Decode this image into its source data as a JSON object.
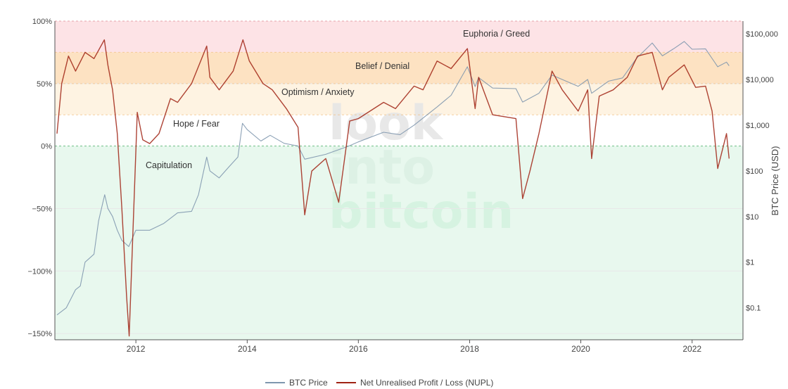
{
  "chart_data": {
    "type": "line",
    "x_ticks": [
      "2012",
      "2014",
      "2016",
      "2018",
      "2020",
      "2022"
    ],
    "y_left": {
      "range": [
        -1.55,
        1.0
      ],
      "ticks": [
        {
          "v": 1.0,
          "label": "100%"
        },
        {
          "v": 0.5,
          "label": "50%"
        },
        {
          "v": 0.0,
          "label": "0%"
        },
        {
          "v": -0.5,
          "label": "−50%"
        },
        {
          "v": -1.0,
          "label": "−100%"
        },
        {
          "v": -1.5,
          "label": "−150%"
        }
      ]
    },
    "y_right": {
      "title": "BTC Price (USD)",
      "scale": "log",
      "range": [
        0.02,
        190000
      ],
      "ticks": [
        {
          "v": 100000,
          "label": "$100,000"
        },
        {
          "v": 10000,
          "label": "$10,000"
        },
        {
          "v": 1000,
          "label": "$1,000"
        },
        {
          "v": 100,
          "label": "$100"
        },
        {
          "v": 10,
          "label": "$10"
        },
        {
          "v": 1,
          "label": "$1"
        },
        {
          "v": 0.1,
          "label": "$0.1"
        }
      ]
    },
    "zones": [
      {
        "label": "Euphoria / Greed",
        "from": 0.75,
        "to": 1.0,
        "color": "#fde3e6"
      },
      {
        "label": "Belief / Denial",
        "from": 0.5,
        "to": 0.75,
        "color": "#fde2c2"
      },
      {
        "label": "Optimism / Anxiety",
        "from": 0.25,
        "to": 0.5,
        "color": "#fef3e2"
      },
      {
        "label": "Hope / Fear",
        "from": 0.0,
        "to": 0.25,
        "color": "#ffffff"
      },
      {
        "label": "Capitulation",
        "from": -1.55,
        "to": 0.0,
        "color": "#e8f8ee"
      }
    ],
    "watermark": [
      "look",
      "into",
      "bitcoin"
    ],
    "series": [
      {
        "name": "BTC Price",
        "axis": "right",
        "color": "#7f97ae",
        "points": [
          [
            "2010-08-01",
            0.07
          ],
          [
            "2010-10-01",
            0.1
          ],
          [
            "2010-12-01",
            0.25
          ],
          [
            "2011-01-01",
            0.3
          ],
          [
            "2011-02-01",
            1.0
          ],
          [
            "2011-04-01",
            1.5
          ],
          [
            "2011-05-01",
            8
          ],
          [
            "2011-06-10",
            30
          ],
          [
            "2011-07-01",
            15
          ],
          [
            "2011-08-01",
            10
          ],
          [
            "2011-09-01",
            5
          ],
          [
            "2011-10-01",
            3
          ],
          [
            "2011-11-15",
            2.2
          ],
          [
            "2012-01-01",
            5
          ],
          [
            "2012-04-01",
            5
          ],
          [
            "2012-07-01",
            7
          ],
          [
            "2012-10-01",
            12
          ],
          [
            "2013-01-01",
            13
          ],
          [
            "2013-02-15",
            30
          ],
          [
            "2013-04-10",
            200
          ],
          [
            "2013-05-01",
            100
          ],
          [
            "2013-07-01",
            70
          ],
          [
            "2013-09-01",
            120
          ],
          [
            "2013-11-01",
            200
          ],
          [
            "2013-12-01",
            1100
          ],
          [
            "2014-01-01",
            800
          ],
          [
            "2014-04-01",
            450
          ],
          [
            "2014-06-01",
            600
          ],
          [
            "2014-09-01",
            400
          ],
          [
            "2014-12-01",
            350
          ],
          [
            "2015-01-14",
            180
          ],
          [
            "2015-06-01",
            230
          ],
          [
            "2015-11-01",
            350
          ],
          [
            "2016-01-01",
            430
          ],
          [
            "2016-06-15",
            700
          ],
          [
            "2016-10-01",
            620
          ],
          [
            "2017-01-01",
            1000
          ],
          [
            "2017-06-01",
            2500
          ],
          [
            "2017-09-01",
            4500
          ],
          [
            "2017-12-17",
            19000
          ],
          [
            "2018-02-06",
            7000
          ],
          [
            "2018-03-01",
            11000
          ],
          [
            "2018-06-01",
            6500
          ],
          [
            "2018-11-01",
            6300
          ],
          [
            "2018-12-15",
            3200
          ],
          [
            "2019-04-01",
            5000
          ],
          [
            "2019-06-26",
            12500
          ],
          [
            "2019-09-01",
            10000
          ],
          [
            "2019-12-15",
            7100
          ],
          [
            "2020-02-15",
            10000
          ],
          [
            "2020-03-12",
            5000
          ],
          [
            "2020-07-01",
            9200
          ],
          [
            "2020-10-01",
            10800
          ],
          [
            "2021-01-01",
            29000
          ],
          [
            "2021-04-14",
            63000
          ],
          [
            "2021-06-20",
            33000
          ],
          [
            "2021-09-01",
            47000
          ],
          [
            "2021-11-10",
            68000
          ],
          [
            "2022-01-01",
            46000
          ],
          [
            "2022-03-30",
            47000
          ],
          [
            "2022-06-18",
            19000
          ],
          [
            "2022-08-15",
            24000
          ],
          [
            "2022-09-01",
            20000
          ]
        ]
      },
      {
        "name": "Net Unrealised Profit / Loss (NUPL)",
        "axis": "left",
        "color": "#a02314",
        "points": [
          [
            "2010-08-01",
            0.1
          ],
          [
            "2010-09-01",
            0.5
          ],
          [
            "2010-10-15",
            0.72
          ],
          [
            "2010-12-01",
            0.6
          ],
          [
            "2011-02-01",
            0.75
          ],
          [
            "2011-04-01",
            0.7
          ],
          [
            "2011-06-08",
            0.85
          ],
          [
            "2011-07-01",
            0.65
          ],
          [
            "2011-08-01",
            0.45
          ],
          [
            "2011-09-01",
            0.1
          ],
          [
            "2011-10-01",
            -0.5
          ],
          [
            "2011-11-01",
            -1.2
          ],
          [
            "2011-11-18",
            -1.52
          ],
          [
            "2011-12-15",
            -0.6
          ],
          [
            "2012-01-10",
            0.27
          ],
          [
            "2012-02-15",
            0.05
          ],
          [
            "2012-04-01",
            0.02
          ],
          [
            "2012-06-01",
            0.1
          ],
          [
            "2012-08-15",
            0.38
          ],
          [
            "2012-10-01",
            0.35
          ],
          [
            "2013-01-01",
            0.5
          ],
          [
            "2013-04-10",
            0.8
          ],
          [
            "2013-05-01",
            0.55
          ],
          [
            "2013-07-01",
            0.45
          ],
          [
            "2013-10-01",
            0.6
          ],
          [
            "2013-12-04",
            0.85
          ],
          [
            "2014-01-15",
            0.68
          ],
          [
            "2014-04-15",
            0.5
          ],
          [
            "2014-06-15",
            0.45
          ],
          [
            "2014-09-15",
            0.3
          ],
          [
            "2014-12-01",
            0.15
          ],
          [
            "2015-01-14",
            -0.55
          ],
          [
            "2015-03-01",
            -0.2
          ],
          [
            "2015-06-01",
            -0.1
          ],
          [
            "2015-08-25",
            -0.45
          ],
          [
            "2015-11-05",
            0.2
          ],
          [
            "2016-01-01",
            0.22
          ],
          [
            "2016-06-15",
            0.35
          ],
          [
            "2016-09-01",
            0.3
          ],
          [
            "2017-01-01",
            0.48
          ],
          [
            "2017-03-01",
            0.45
          ],
          [
            "2017-06-01",
            0.68
          ],
          [
            "2017-09-01",
            0.62
          ],
          [
            "2017-12-17",
            0.78
          ],
          [
            "2018-02-06",
            0.3
          ],
          [
            "2018-03-01",
            0.55
          ],
          [
            "2018-06-01",
            0.25
          ],
          [
            "2018-11-01",
            0.22
          ],
          [
            "2018-12-15",
            -0.42
          ],
          [
            "2019-02-01",
            -0.2
          ],
          [
            "2019-04-01",
            0.1
          ],
          [
            "2019-06-26",
            0.6
          ],
          [
            "2019-09-01",
            0.45
          ],
          [
            "2019-12-15",
            0.28
          ],
          [
            "2020-02-15",
            0.45
          ],
          [
            "2020-03-12",
            -0.1
          ],
          [
            "2020-05-01",
            0.4
          ],
          [
            "2020-08-01",
            0.45
          ],
          [
            "2020-11-01",
            0.55
          ],
          [
            "2021-01-08",
            0.72
          ],
          [
            "2021-04-14",
            0.75
          ],
          [
            "2021-06-20",
            0.45
          ],
          [
            "2021-08-01",
            0.55
          ],
          [
            "2021-11-10",
            0.65
          ],
          [
            "2022-01-24",
            0.47
          ],
          [
            "2022-03-30",
            0.48
          ],
          [
            "2022-05-12",
            0.28
          ],
          [
            "2022-06-18",
            -0.18
          ],
          [
            "2022-08-15",
            0.1
          ],
          [
            "2022-09-01",
            -0.1
          ]
        ]
      }
    ]
  }
}
